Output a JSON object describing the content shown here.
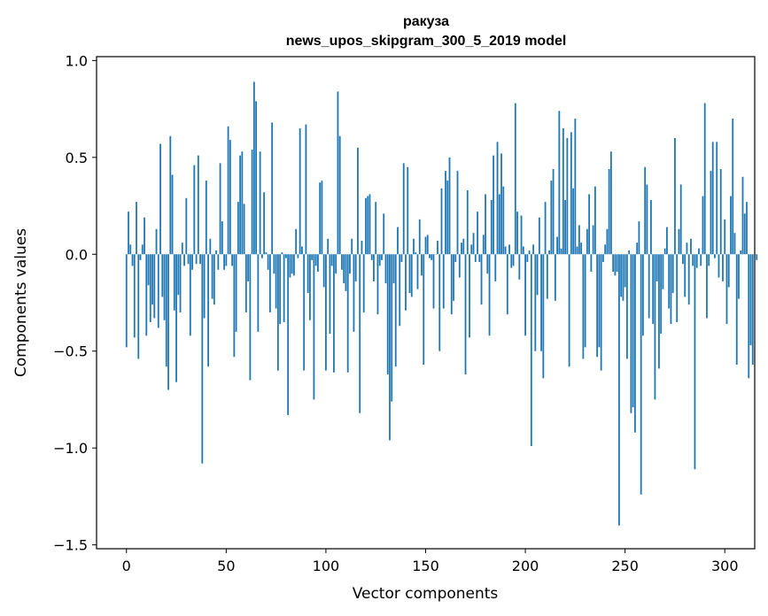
{
  "chart_data": {
    "type": "bar",
    "title_line1": "ракуза",
    "title_line2": "news_upos_skipgram_300_5_2019 model",
    "xlabel": "Vector components",
    "ylabel": "Components values",
    "xlim": [
      -15,
      315
    ],
    "ylim": [
      -1.52,
      1.02
    ],
    "xticks": [
      0,
      50,
      100,
      150,
      200,
      250,
      300
    ],
    "xtick_labels": [
      "0",
      "50",
      "100",
      "150",
      "200",
      "250",
      "300"
    ],
    "yticks": [
      -1.5,
      -1.0,
      -0.5,
      0.0,
      0.5,
      1.0
    ],
    "ytick_labels": [
      "−1.5",
      "−1.0",
      "−0.5",
      "0.0",
      "0.5",
      "1.0"
    ],
    "bar_color": "#1f77b4",
    "values": [
      -0.48,
      0.22,
      0.05,
      -0.06,
      -0.43,
      0.27,
      -0.54,
      -0.03,
      0.05,
      0.19,
      -0.42,
      -0.16,
      -0.35,
      -0.26,
      -0.33,
      0.13,
      -0.38,
      0.57,
      -0.22,
      -0.34,
      -0.58,
      -0.7,
      0.61,
      0.41,
      -0.29,
      -0.66,
      -0.21,
      -0.3,
      0.06,
      -0.06,
      0.29,
      -0.05,
      -0.42,
      -0.08,
      0.46,
      -0.05,
      0.51,
      -0.05,
      -1.08,
      -0.33,
      0.38,
      -0.58,
      0.08,
      -0.23,
      -0.26,
      0.02,
      -0.08,
      0.47,
      0.17,
      -0.08,
      -0.06,
      0.66,
      0.59,
      -0.06,
      -0.53,
      -0.4,
      0.27,
      0.51,
      0.53,
      0.26,
      -0.3,
      -0.14,
      -0.65,
      0.54,
      0.89,
      0.79,
      -0.4,
      0.53,
      -0.02,
      0.32,
      0.01,
      -0.08,
      -0.3,
      0.68,
      -0.1,
      -0.28,
      -0.6,
      -0.36,
      0.01,
      -0.35,
      -0.02,
      -0.83,
      -0.12,
      -0.1,
      -0.11,
      0.13,
      -0.02,
      0.65,
      0.04,
      -0.6,
      0.67,
      -0.2,
      -0.34,
      -0.03,
      -0.75,
      -0.06,
      -0.09,
      0.37,
      0.38,
      -0.17,
      -0.6,
      0.08,
      -0.41,
      -0.06,
      -0.61,
      -0.1,
      0.84,
      0.61,
      -0.08,
      -0.15,
      -0.19,
      -0.61,
      -0.1,
      0.08,
      -0.4,
      -0.14,
      0.55,
      -0.82,
      0.07,
      -0.3,
      0.29,
      0.3,
      0.31,
      -0.03,
      -0.14,
      0.27,
      -0.31,
      -0.06,
      -0.03,
      0.21,
      -0.15,
      -0.62,
      -0.96,
      -0.76,
      -0.15,
      -0.58,
      0.14,
      -0.37,
      -0.04,
      0.47,
      -0.29,
      0.45,
      -0.2,
      -0.22,
      0.08,
      0.01,
      -0.18,
      0.18,
      -0.11,
      -0.57,
      0.09,
      0.1,
      -0.02,
      -0.03,
      -0.28,
      0.0,
      0.07,
      -0.5,
      0.34,
      -0.28,
      0.43,
      0.38,
      0.5,
      -0.31,
      -0.24,
      -0.04,
      0.43,
      -0.12,
      0.06,
      0.08,
      -0.62,
      0.33,
      -0.43,
      0.05,
      0.11,
      -0.04,
      0.22,
      -0.04,
      -0.26,
      0.1,
      0.31,
      -0.1,
      -0.42,
      0.28,
      0.51,
      -0.14,
      0.58,
      0.31,
      0.52,
      0.35,
      0.04,
      -0.31,
      0.05,
      -0.07,
      -0.06,
      0.78,
      0.22,
      -0.13,
      0.2,
      0.04,
      -0.42,
      -0.04,
      0.02,
      -0.99,
      0.05,
      -0.5,
      -0.21,
      0.19,
      -0.5,
      -0.64,
      0.27,
      -0.23,
      0.02,
      0.38,
      0.44,
      -0.24,
      0.09,
      0.74,
      0.03,
      0.65,
      0.28,
      0.6,
      -0.58,
      0.63,
      0.34,
      0.7,
      0.04,
      0.15,
      0.06,
      -0.54,
      -0.48,
      0.13,
      0.31,
      -0.09,
      0.15,
      0.35,
      -0.53,
      -0.48,
      -0.6,
      -0.04,
      0.05,
      0.13,
      0.44,
      0.53,
      -0.09,
      -0.11,
      -0.09,
      -1.4,
      -0.22,
      -0.24,
      -0.17,
      -0.54,
      0.02,
      -0.82,
      -0.79,
      -0.92,
      0.06,
      0.17,
      -1.24,
      -0.42,
      0.45,
      0.36,
      -0.33,
      0.28,
      -0.36,
      -0.75,
      -0.14,
      -0.59,
      -0.41,
      -0.18,
      0.03,
      0.14,
      -0.28,
      -0.36,
      -0.2,
      0.6,
      -0.35,
      0.13,
      0.36,
      -0.05,
      -0.22,
      0.06,
      -0.26,
      0.08,
      -0.06,
      -1.11,
      -0.07,
      0.03,
      -0.06,
      0.3,
      0.78,
      -0.33,
      -0.06,
      0.43,
      0.58,
      -0.02,
      0.58,
      -0.12,
      0.44,
      -0.14,
      0.18,
      -0.36,
      -0.17,
      0.3,
      0.7,
      0.11,
      -0.57,
      -0.23,
      0.02,
      0.4,
      0.21,
      0.27,
      -0.64,
      -0.47,
      -0.57,
      0.0,
      -0.03
    ]
  }
}
